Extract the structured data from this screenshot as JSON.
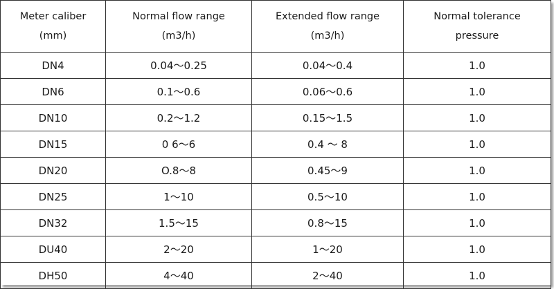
{
  "table": {
    "headers": [
      "Meter caliber\n(mm)",
      "Normal flow range\n(m3/h)",
      "Extended flow range\n(m3/h)",
      "Normal tolerance\npressure"
    ],
    "rows": [
      [
        "DN4",
        "0.04〜0.25",
        "0.04〜0.4",
        "1.0"
      ],
      [
        "DN6",
        "0.1〜0.6",
        "0.06〜0.6",
        "1.0"
      ],
      [
        "DN10",
        "0.2〜1.2",
        "0.15〜1.5",
        "1.0"
      ],
      [
        "DN15",
        "0 6〜6",
        "0.4 〜 8",
        "1.0"
      ],
      [
        "DN20",
        "O.8〜8",
        "0.45〜9",
        "1.0"
      ],
      [
        "DN25",
        "1〜10",
        "0.5〜10",
        "1.0"
      ],
      [
        "DN32",
        "1.5〜15",
        "0.8〜15",
        "1.0"
      ],
      [
        "DU40",
        "2〜20",
        "1〜20",
        "1.0"
      ],
      [
        "DH50",
        "4〜40",
        "2〜40",
        "1.0"
      ]
    ]
  }
}
